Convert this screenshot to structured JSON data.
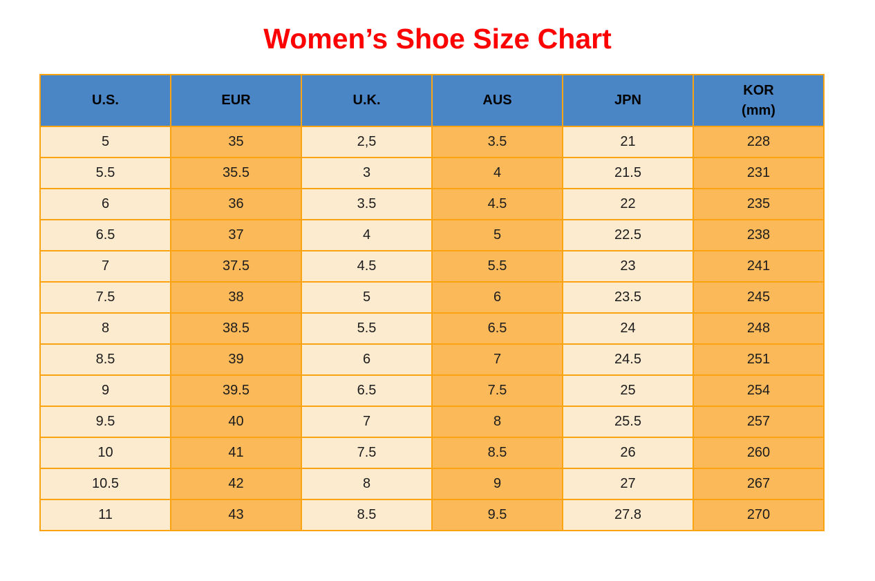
{
  "title": {
    "text": "Women’s Shoe Size Chart"
  },
  "colors": {
    "title_red": "#ff0000",
    "header_blue": "#4a86c6",
    "cell_cream": "#fdebd0",
    "cell_orange": "#fbb95a",
    "grid_border_orange": "#fca312",
    "header_text": "#000000",
    "cell_text": "#1c1c1c",
    "page_background": "#ffffff"
  },
  "chart_data": {
    "type": "table",
    "title": "Women’s Shoe Size Chart",
    "columns": [
      "U.S.",
      "EUR",
      "U.K.",
      "AUS",
      "JPN",
      "KOR (mm)"
    ],
    "column_header_lines": [
      [
        "U.S."
      ],
      [
        "EUR"
      ],
      [
        "U.K."
      ],
      [
        "AUS"
      ],
      [
        "JPN"
      ],
      [
        "KOR",
        "(mm)"
      ]
    ],
    "rows": [
      [
        "5",
        "35",
        "2,5",
        "3.5",
        "21",
        "228"
      ],
      [
        "5.5",
        "35.5",
        "3",
        "4",
        "21.5",
        "231"
      ],
      [
        "6",
        "36",
        "3.5",
        "4.5",
        "22",
        "235"
      ],
      [
        "6.5",
        "37",
        "4",
        "5",
        "22.5",
        "238"
      ],
      [
        "7",
        "37.5",
        "4.5",
        "5.5",
        "23",
        "241"
      ],
      [
        "7.5",
        "38",
        "5",
        "6",
        "23.5",
        "245"
      ],
      [
        "8",
        "38.5",
        "5.5",
        "6.5",
        "24",
        "248"
      ],
      [
        "8.5",
        "39",
        "6",
        "7",
        "24.5",
        "251"
      ],
      [
        "9",
        "39.5",
        "6.5",
        "7.5",
        "25",
        "254"
      ],
      [
        "9.5",
        "40",
        "7",
        "8",
        "25.5",
        "257"
      ],
      [
        "10",
        "41",
        "7.5",
        "8.5",
        "26",
        "260"
      ],
      [
        "10.5",
        "42",
        "8",
        "9",
        "27",
        "267"
      ],
      [
        "11",
        "43",
        "8.5",
        "9.5",
        "27.8",
        "270"
      ]
    ],
    "layout": {
      "column_fill_pattern": [
        "cream",
        "orange",
        "cream",
        "orange",
        "cream",
        "orange"
      ],
      "grid": true,
      "header_position": "top"
    }
  }
}
